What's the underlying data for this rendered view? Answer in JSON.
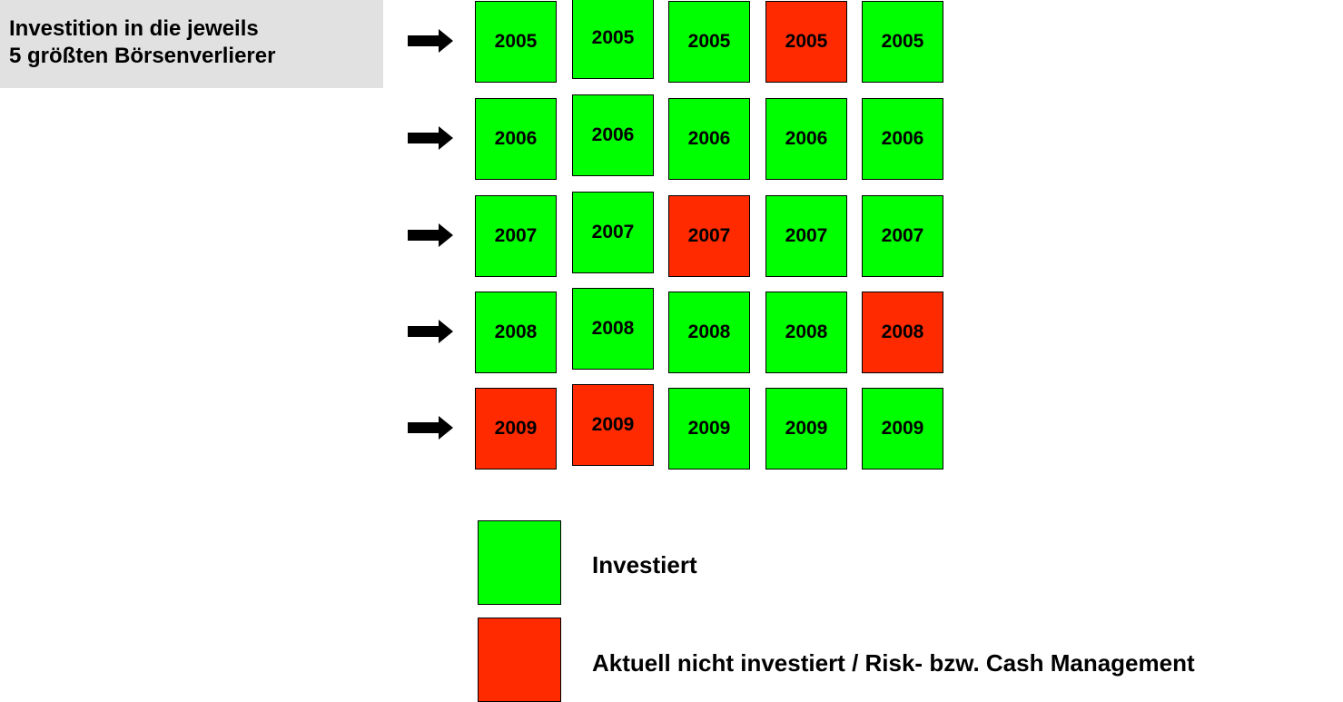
{
  "title": {
    "line1": "Investition in die jeweils",
    "line2": "5 größten Börsenverlierer"
  },
  "colors": {
    "invested": "#00ff00",
    "not_invested": "#ff2a00",
    "title_bg": "#e1e1e1"
  },
  "rows": [
    {
      "year": "2005",
      "cells": [
        "invested",
        "invested",
        "invested",
        "not_invested",
        "invested"
      ]
    },
    {
      "year": "2006",
      "cells": [
        "invested",
        "invested",
        "invested",
        "invested",
        "invested"
      ]
    },
    {
      "year": "2007",
      "cells": [
        "invested",
        "invested",
        "not_invested",
        "invested",
        "invested"
      ]
    },
    {
      "year": "2008",
      "cells": [
        "invested",
        "invested",
        "invested",
        "invested",
        "not_invested"
      ]
    },
    {
      "year": "2009",
      "cells": [
        "not_invested",
        "not_invested",
        "invested",
        "invested",
        "invested"
      ]
    }
  ],
  "legend": {
    "invested_label": "Investiert",
    "not_invested_label": "Aktuell nicht investiert / Risk- bzw. Cash Management"
  }
}
